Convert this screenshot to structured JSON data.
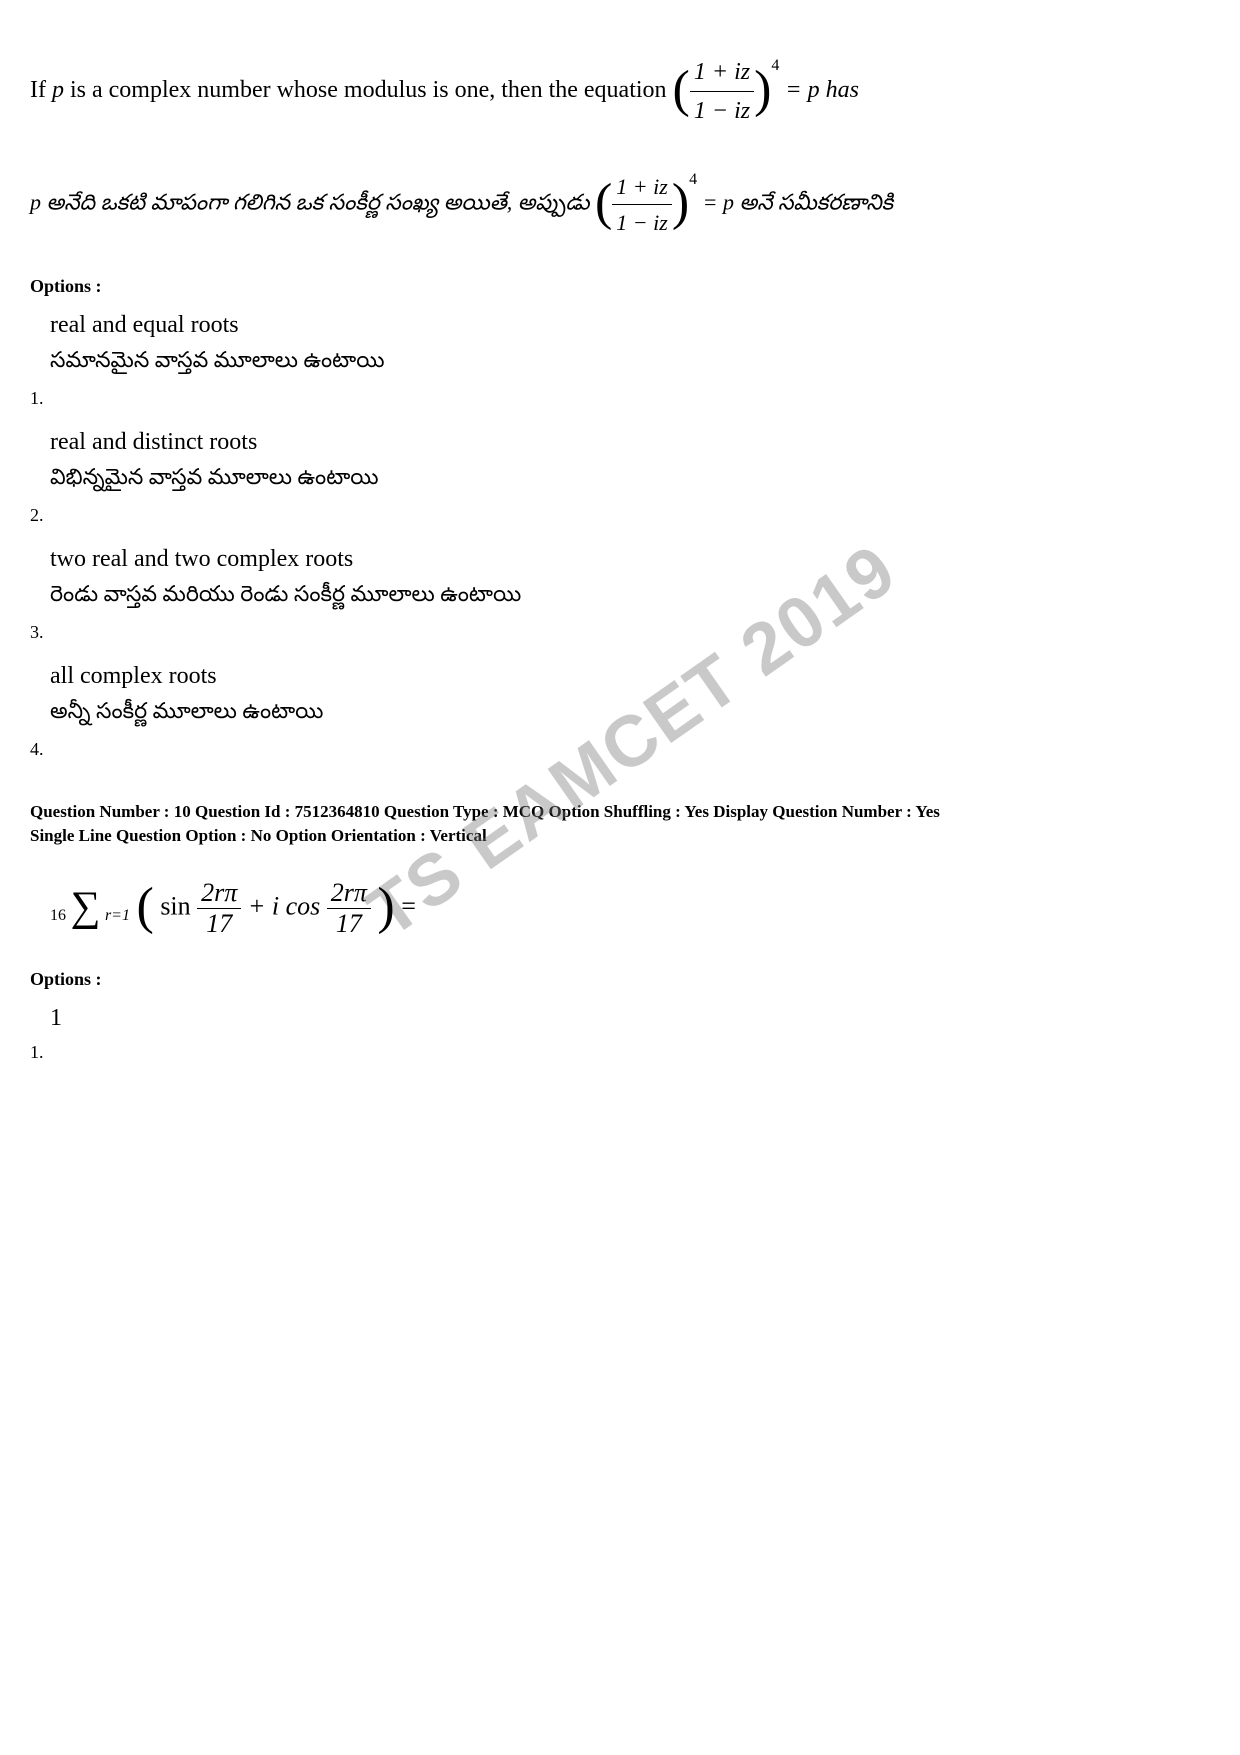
{
  "watermark_text": "TS EAMCET 2019",
  "question1": {
    "english_prefix": "If ",
    "english_var": "p",
    "english_mid": " is a complex number whose modulus is one, then the equation ",
    "frac_num": "1 + iz",
    "frac_den": "1 − iz",
    "exp_power": "4",
    "eq_tail": " = p  has",
    "telugu_prefix": "p అనేది ఒకటి మాపంగా గలిగిన ఒక సంకీర్ణ సంఖ్య అయితే, అప్పుడు ",
    "telugu_tail": " = p  అనే సమీకరణానికి"
  },
  "options_label": "Options :",
  "options1": [
    {
      "en": "real and equal roots",
      "te": "సమానమైన వాస్తవ మూలాలు ఉంటాయి",
      "num": "1."
    },
    {
      "en": "real and distinct roots",
      "te": "విభిన్నమైన వాస్తవ మూలాలు ఉంటాయి",
      "num": "2."
    },
    {
      "en": "two real and two complex roots",
      "te": "రెండు వాస్తవ మరియు రెండు సంకీర్ణ మూలాలు ఉంటాయి",
      "num": "3."
    },
    {
      "en": "all complex roots",
      "te": "అన్నీ సంకీర్ణ మూలాలు ఉంటాయి",
      "num": "4."
    }
  ],
  "meta": {
    "line1": "Question Number : 10  Question Id : 7512364810  Question Type : MCQ  Option Shuffling : Yes  Display Question Number : Yes",
    "line2": "Single Line Question Option : No  Option Orientation : Vertical"
  },
  "question2": {
    "sum_top": "16",
    "sum_bot": "r=1",
    "inner_a": "sin",
    "frac_num": "2rπ",
    "frac_den": "17",
    "plus_i": " + i cos",
    "eq_tail": " ="
  },
  "options2_label": "Options :",
  "options2_first": {
    "value": "1",
    "num": "1."
  }
}
